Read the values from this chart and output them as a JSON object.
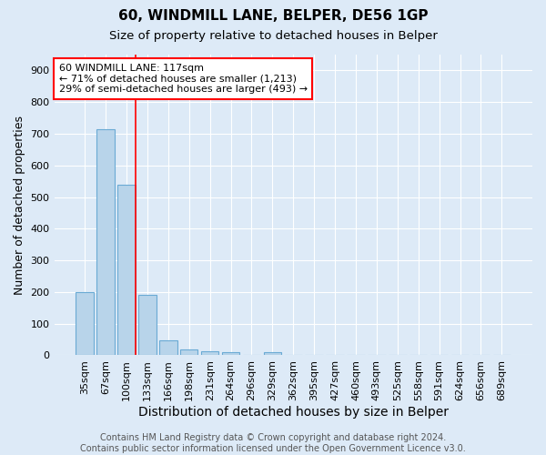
{
  "title": "60, WINDMILL LANE, BELPER, DE56 1GP",
  "subtitle": "Size of property relative to detached houses in Belper",
  "xlabel": "Distribution of detached houses by size in Belper",
  "ylabel": "Number of detached properties",
  "categories": [
    "35sqm",
    "67sqm",
    "100sqm",
    "133sqm",
    "166sqm",
    "198sqm",
    "231sqm",
    "264sqm",
    "296sqm",
    "329sqm",
    "362sqm",
    "395sqm",
    "427sqm",
    "460sqm",
    "493sqm",
    "525sqm",
    "558sqm",
    "591sqm",
    "624sqm",
    "656sqm",
    "689sqm"
  ],
  "values": [
    200,
    715,
    538,
    192,
    46,
    20,
    13,
    11,
    0,
    9,
    0,
    0,
    0,
    0,
    0,
    0,
    0,
    0,
    0,
    0,
    0
  ],
  "bar_color": "#b8d4ea",
  "bar_edge_color": "#6aaad4",
  "background_color": "#ddeaf7",
  "grid_color": "#ffffff",
  "annotation_text": "60 WINDMILL LANE: 117sqm\n← 71% of detached houses are smaller (1,213)\n29% of semi-detached houses are larger (493) →",
  "annotation_box_color": "white",
  "annotation_box_edge": "red",
  "footer": "Contains HM Land Registry data © Crown copyright and database right 2024.\nContains public sector information licensed under the Open Government Licence v3.0.",
  "ylim": [
    0,
    950
  ],
  "yticks": [
    0,
    100,
    200,
    300,
    400,
    500,
    600,
    700,
    800,
    900
  ],
  "title_fontsize": 11,
  "subtitle_fontsize": 9.5,
  "xlabel_fontsize": 10,
  "ylabel_fontsize": 9,
  "tick_fontsize": 8,
  "footer_fontsize": 7,
  "annotation_fontsize": 8
}
